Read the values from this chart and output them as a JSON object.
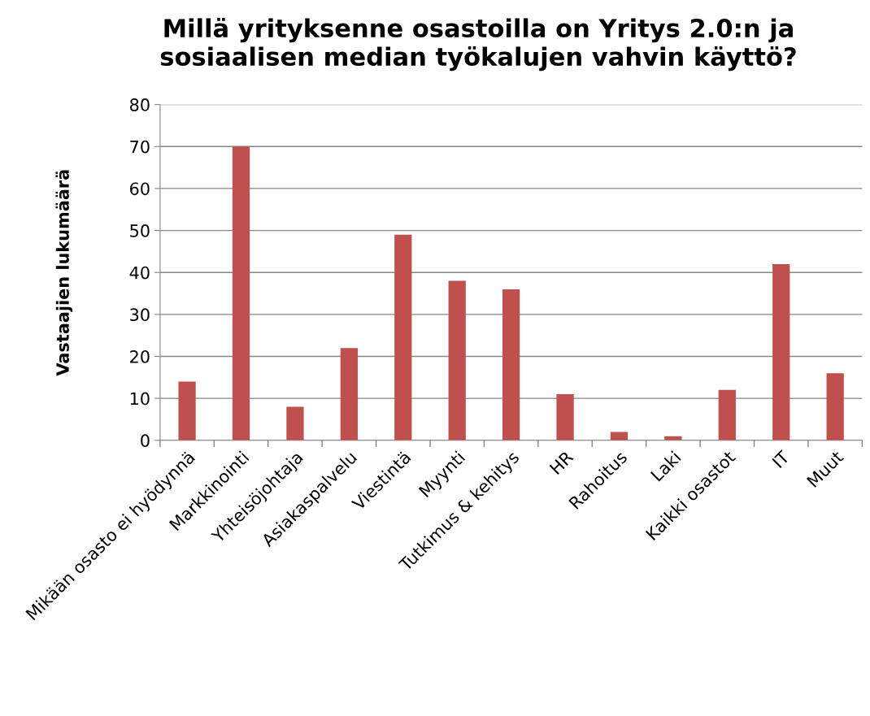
{
  "chart_data": {
    "type": "bar",
    "title": "Millä yrityksenne osastoilla on Yritys 2.0:n ja sosiaalisen median työkalujen vahvin käyttö?",
    "ylabel": "Vastaajien lukumäärä",
    "categories": [
      "Mikään osasto ei hyödynnä",
      "Markkinointi",
      "Yhteisöjohtaja",
      "Asiakaspalvelu",
      "Viestintä",
      "Myynti",
      "Tutkimus & kehitys",
      "HR",
      "Rahoitus",
      "Laki",
      "Kaikki osastot",
      "IT",
      "Muut"
    ],
    "values": [
      14,
      70,
      8,
      22,
      49,
      38,
      36,
      11,
      2,
      1,
      12,
      42,
      16
    ],
    "color": "#c0504d",
    "ylim": [
      0,
      80
    ],
    "yticks": [
      0,
      10,
      20,
      30,
      40,
      50,
      60,
      70,
      80
    ],
    "grid": "y",
    "legend": false
  }
}
